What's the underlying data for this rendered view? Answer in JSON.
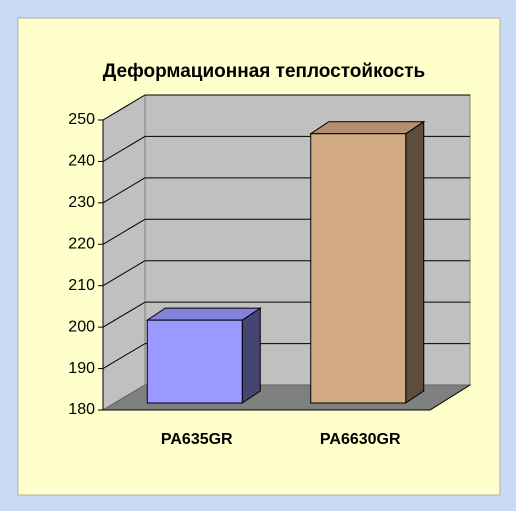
{
  "chart_data": {
    "type": "bar3d",
    "title": "Деформационная теплостойкость",
    "categories": [
      "PA635GR",
      "PA6630GR"
    ],
    "values": [
      200,
      245
    ],
    "colors": [
      "#9999ff",
      "#d2aa84"
    ],
    "ylim": [
      180,
      250
    ],
    "yticks": [
      180,
      190,
      200,
      210,
      220,
      230,
      240,
      250
    ],
    "grid": true
  }
}
